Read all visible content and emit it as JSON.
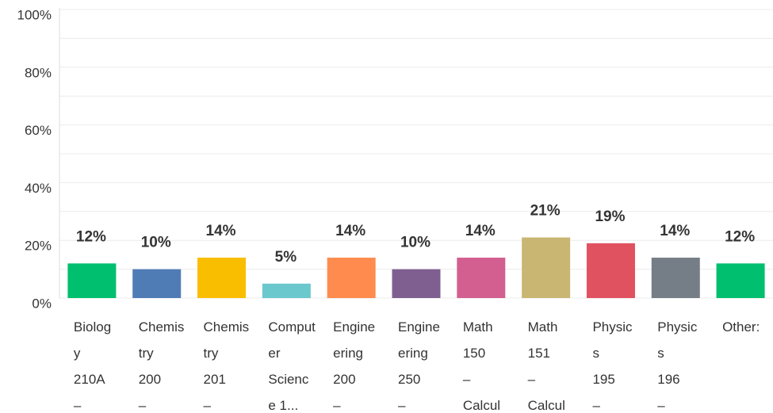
{
  "chart_data": {
    "type": "bar",
    "categories": [
      "Biolog\ny\n210A\n–",
      "Chemis\ntry\n200\n–",
      "Chemis\ntry\n201\n–",
      "Comput\ner\nScienc\ne 1...",
      "Engine\nering\n200\n–",
      "Engine\nering\n250\n–",
      "Math\n150\n–\nCalcul",
      "Math\n151\n–\nCalcul",
      "Physic\ns\n195\n–",
      "Physic\ns\n196\n–",
      "Other:"
    ],
    "values": [
      12,
      10,
      14,
      5,
      14,
      10,
      14,
      21,
      19,
      14,
      12
    ],
    "value_labels": [
      "12%",
      "10%",
      "14%",
      "5%",
      "14%",
      "10%",
      "14%",
      "21%",
      "19%",
      "14%",
      "12%"
    ],
    "colors": [
      "#00bf6f",
      "#507cb6",
      "#f9be00",
      "#6bc8cd",
      "#ff8b4f",
      "#7f5f90",
      "#d25f90",
      "#c8b672",
      "#e05260",
      "#757d86",
      "#00bf6f"
    ],
    "ylim": [
      0,
      100
    ],
    "yticks": [
      {
        "value": 0,
        "label": "0%"
      },
      {
        "value": 20,
        "label": "20%"
      },
      {
        "value": 40,
        "label": "40%"
      },
      {
        "value": 60,
        "label": "60%"
      },
      {
        "value": 80,
        "label": "80%"
      },
      {
        "value": 100,
        "label": "100%"
      }
    ],
    "minor_yticks": [
      10,
      30,
      50,
      70,
      90
    ],
    "grid": true
  }
}
